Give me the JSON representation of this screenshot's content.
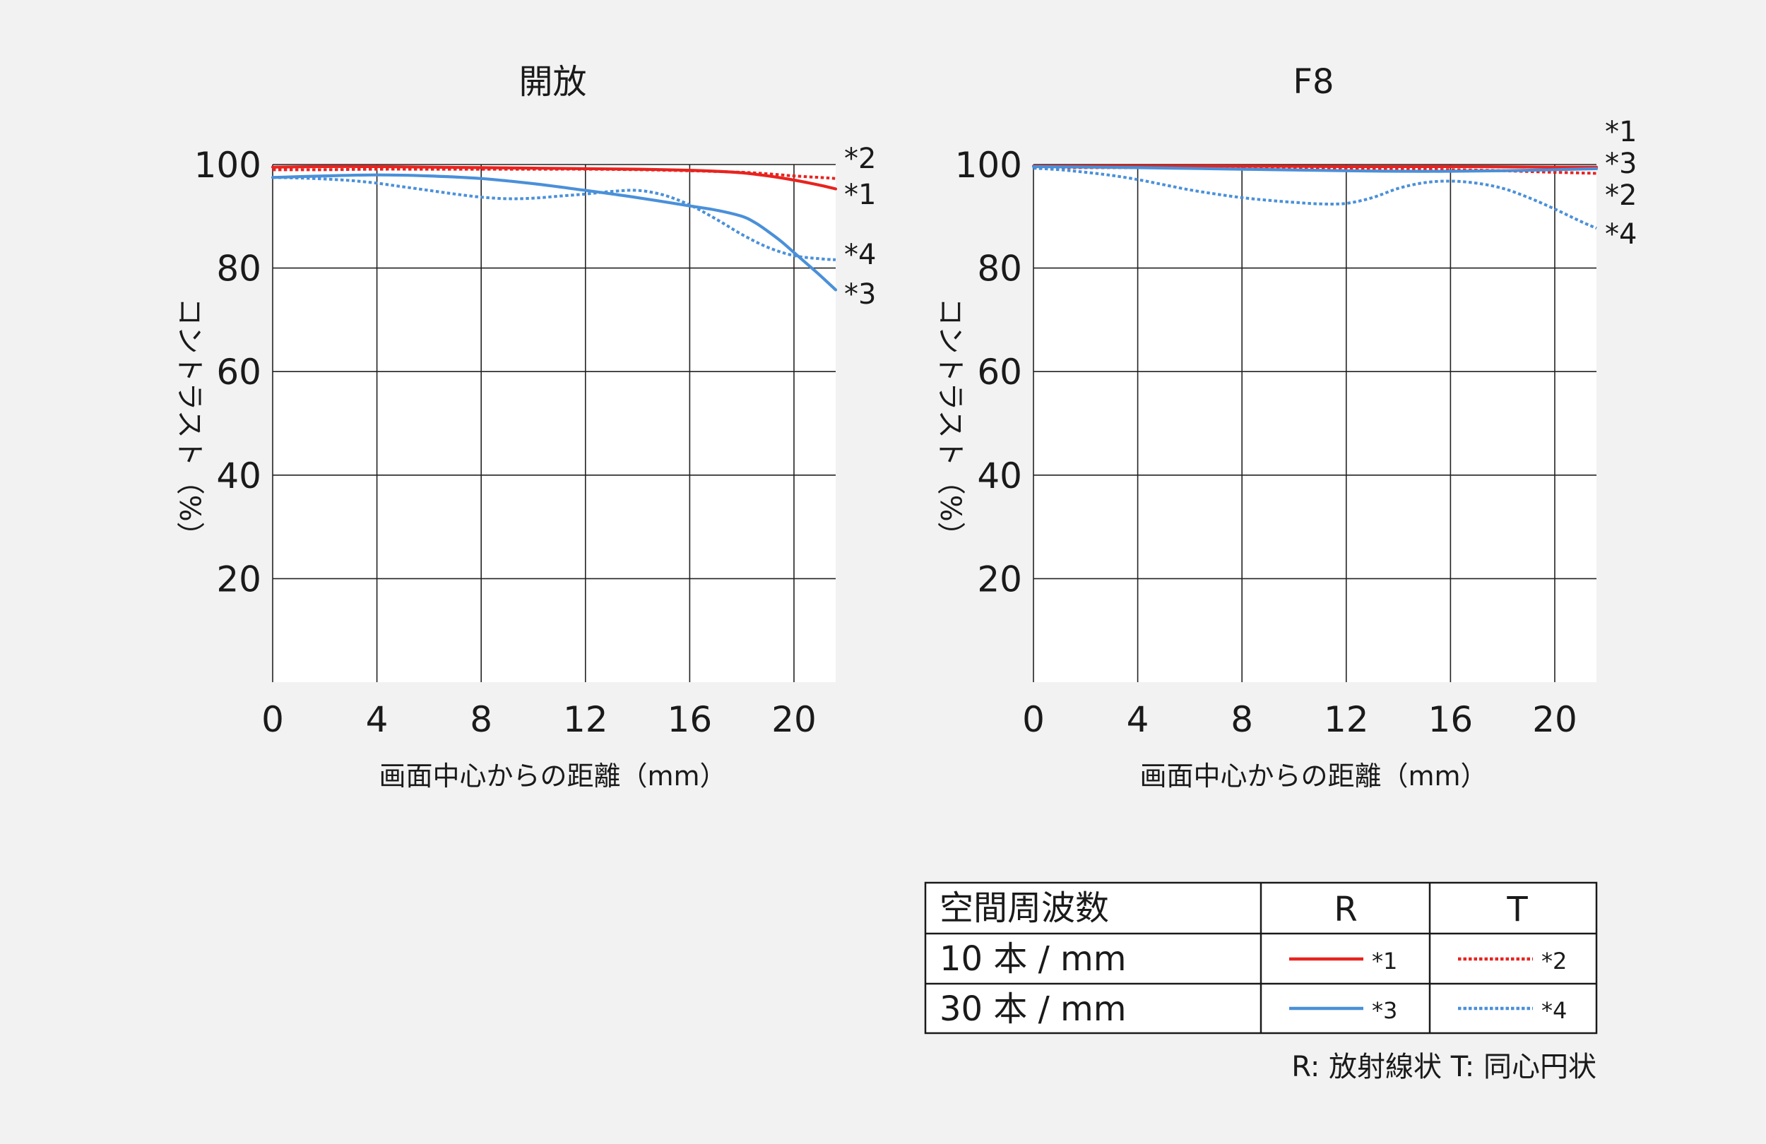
{
  "chart_data": [
    {
      "type": "line",
      "title": "開放",
      "xlabel": "画面中心からの距離（mm）",
      "ylabel": "コントラスト（%）",
      "xlim": [
        0,
        21.6
      ],
      "ylim": [
        0,
        100
      ],
      "xticks": [
        0,
        4,
        8,
        12,
        16,
        20
      ],
      "yticks": [
        20,
        40,
        60,
        80,
        100
      ],
      "grid": true,
      "series": [
        {
          "name": "*1",
          "color": "#e8231f",
          "style": "solid",
          "x": [
            0,
            2,
            4,
            6,
            8,
            10,
            12,
            14,
            16,
            17,
            18,
            19,
            20,
            21,
            21.6
          ],
          "y": [
            99.5,
            99.6,
            99.6,
            99.5,
            99.4,
            99.3,
            99.2,
            99.1,
            98.9,
            98.7,
            98.4,
            97.8,
            97.0,
            96.0,
            95.3
          ]
        },
        {
          "name": "*2",
          "color": "#e8231f",
          "style": "dotted",
          "x": [
            0,
            2,
            4,
            6,
            8,
            10,
            12,
            14,
            16,
            18,
            19,
            20,
            21,
            21.6
          ],
          "y": [
            99.0,
            99.0,
            99.1,
            99.1,
            99.1,
            99.1,
            99.1,
            99.0,
            98.8,
            98.5,
            98.2,
            97.8,
            97.5,
            97.3
          ]
        },
        {
          "name": "*3",
          "color": "#4a90d9",
          "style": "solid",
          "x": [
            0,
            2,
            4,
            6,
            8,
            10,
            12,
            14,
            16,
            17,
            18,
            18.5,
            19,
            19.5,
            20,
            20.5,
            21,
            21.6
          ],
          "y": [
            97.5,
            97.8,
            98.0,
            97.8,
            97.3,
            96.3,
            95.0,
            93.6,
            92.0,
            91.2,
            90.0,
            88.8,
            87.1,
            85.2,
            83.0,
            80.8,
            78.6,
            75.8
          ]
        },
        {
          "name": "*4",
          "color": "#4a90d9",
          "style": "dotted",
          "x": [
            0,
            1,
            2,
            3,
            4,
            5,
            6,
            7,
            8,
            9,
            10,
            11,
            12,
            13,
            14,
            15,
            16,
            17,
            18,
            19,
            20,
            21,
            21.6
          ],
          "y": [
            97.5,
            97.4,
            97.2,
            96.9,
            96.4,
            95.7,
            95.0,
            94.3,
            93.7,
            93.4,
            93.5,
            93.9,
            94.3,
            94.8,
            95.0,
            94.1,
            92.2,
            89.5,
            86.5,
            84.0,
            82.4,
            81.8,
            81.6
          ]
        }
      ]
    },
    {
      "type": "line",
      "title": "F8",
      "xlabel": "画面中心からの距離（mm）",
      "ylabel": "コントラスト（%）",
      "xlim": [
        0,
        21.6
      ],
      "ylim": [
        0,
        100
      ],
      "xticks": [
        0,
        4,
        8,
        12,
        16,
        20
      ],
      "yticks": [
        20,
        40,
        60,
        80,
        100
      ],
      "grid": true,
      "series": [
        {
          "name": "*1",
          "color": "#e8231f",
          "style": "solid",
          "x": [
            0,
            4,
            8,
            12,
            16,
            20,
            21.6
          ],
          "y": [
            99.7,
            99.7,
            99.7,
            99.6,
            99.6,
            99.5,
            99.5
          ]
        },
        {
          "name": "*2",
          "color": "#e8231f",
          "style": "dotted",
          "x": [
            0,
            4,
            8,
            12,
            16,
            18,
            20,
            21.6
          ],
          "y": [
            99.4,
            99.4,
            99.3,
            99.2,
            99.0,
            98.8,
            98.5,
            98.3
          ]
        },
        {
          "name": "*3",
          "color": "#4a90d9",
          "style": "solid",
          "x": [
            0,
            4,
            8,
            12,
            14,
            16,
            18,
            20,
            21.6
          ],
          "y": [
            99.6,
            99.4,
            99.1,
            98.8,
            98.7,
            98.7,
            98.8,
            99.0,
            99.2
          ]
        },
        {
          "name": "*4",
          "color": "#4a90d9",
          "style": "dotted",
          "x": [
            0,
            1,
            2,
            3,
            4,
            5,
            6,
            7,
            8,
            9,
            10,
            11,
            12,
            13,
            14,
            15,
            16,
            17,
            18,
            19,
            20,
            21,
            21.6
          ],
          "y": [
            99.3,
            99.0,
            98.5,
            97.9,
            97.1,
            96.1,
            95.1,
            94.3,
            93.6,
            93.1,
            92.7,
            92.4,
            92.5,
            93.6,
            95.4,
            96.5,
            96.8,
            96.4,
            95.4,
            93.6,
            91.4,
            89.0,
            87.7
          ]
        }
      ]
    }
  ],
  "legend": {
    "header": "空間周波数",
    "col_r": "R",
    "col_t": "T",
    "rows": [
      {
        "label": "10 本 / mm",
        "r_mark": "*1",
        "t_mark": "*2",
        "color": "#e8231f"
      },
      {
        "label": "30 本 / mm",
        "r_mark": "*3",
        "t_mark": "*4",
        "color": "#4a90d9"
      }
    ],
    "note": "R: 放射線状  T: 同心円状"
  }
}
